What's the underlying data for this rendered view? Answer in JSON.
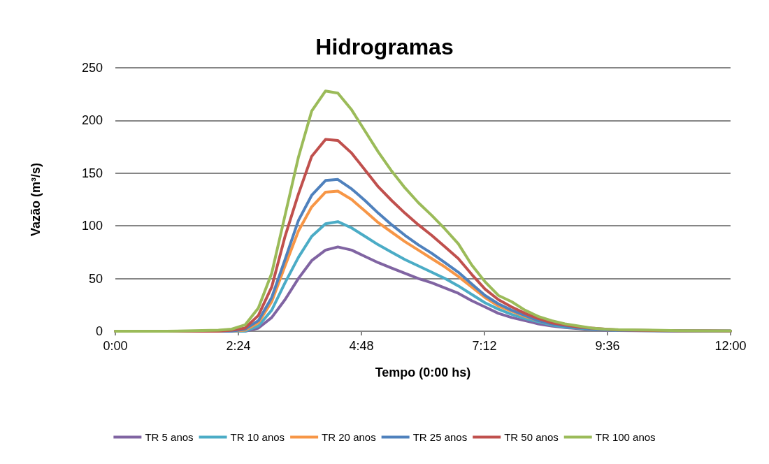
{
  "chart_data": {
    "type": "line",
    "title": "Hidrogramas",
    "xlabel": "Tempo (0:00 hs)",
    "ylabel": "Vazão (m³/s)",
    "x": [
      0,
      1,
      2.01,
      2.27,
      2.53,
      2.79,
      3.05,
      3.31,
      3.57,
      3.83,
      4.1,
      4.34,
      4.61,
      4.87,
      5.13,
      5.39,
      5.65,
      5.91,
      6.17,
      6.43,
      6.69,
      6.95,
      7.21,
      7.47,
      7.73,
      7.99,
      8.25,
      8.51,
      8.77,
      9.03,
      9.29,
      9.55,
      9.81,
      10.5,
      11,
      12
    ],
    "xlim": [
      0,
      12
    ],
    "xticks": [
      {
        "value": 0,
        "label": "0:00"
      },
      {
        "value": 2.4,
        "label": "2:24"
      },
      {
        "value": 4.8,
        "label": "4:48"
      },
      {
        "value": 7.2,
        "label": "7:12"
      },
      {
        "value": 9.6,
        "label": "9:36"
      },
      {
        "value": 12,
        "label": "12:00"
      }
    ],
    "ylim": [
      0,
      250
    ],
    "yticks": [
      0,
      50,
      100,
      150,
      200,
      250
    ],
    "grid": "y",
    "legend": "bottom",
    "marker": "none",
    "line_style": "solid",
    "series": [
      {
        "name": "TR 5 anos",
        "color": "#8064a2",
        "values": [
          0,
          0,
          0,
          0,
          0,
          3,
          13,
          30,
          50,
          67,
          77,
          80,
          77,
          71,
          65,
          60,
          55,
          50,
          46,
          41,
          36,
          29,
          23,
          17,
          13,
          10,
          7,
          5,
          3.5,
          2.5,
          1.5,
          1,
          0.6,
          0.4,
          0.2,
          0.1
        ]
      },
      {
        "name": "TR 10 anos",
        "color": "#4bacc6",
        "values": [
          null,
          null,
          0,
          0,
          0,
          5,
          20,
          46,
          70,
          90,
          102,
          104,
          98,
          90,
          82,
          75,
          68,
          62,
          56,
          50,
          43,
          35,
          27,
          21,
          16,
          12,
          9,
          6,
          4,
          3,
          2,
          1.3,
          0.8,
          0.5,
          0.3,
          0.1
        ]
      },
      {
        "name": "TR 20 anos",
        "color": "#f79646",
        "values": [
          null,
          null,
          0,
          0,
          1,
          8,
          28,
          62,
          95,
          118,
          132,
          133,
          125,
          114,
          103,
          94,
          85,
          77,
          69,
          61,
          52,
          42,
          32,
          24,
          19,
          14,
          10,
          7,
          null,
          null,
          null,
          null,
          null,
          null,
          null,
          null
        ]
      },
      {
        "name": "TR 25 anos",
        "color": "#4f81bd",
        "values": [
          0,
          0,
          0,
          0,
          2,
          10,
          32,
          68,
          105,
          129,
          143,
          144,
          135,
          124,
          112,
          101,
          91,
          82,
          74,
          65,
          56,
          45,
          34,
          26,
          20,
          15,
          10,
          7,
          5,
          3.5,
          2.5,
          1.5,
          1,
          0.6,
          0.3,
          0.2
        ]
      },
      {
        "name": "TR 50 anos",
        "color": "#c0504d",
        "values": [
          0,
          0,
          0,
          1,
          3,
          15,
          42,
          90,
          130,
          166,
          182,
          181,
          169,
          153,
          137,
          124,
          112,
          101,
          91,
          80,
          69,
          54,
          40,
          30,
          23,
          17,
          12,
          8,
          6,
          4,
          3,
          2,
          1.2,
          0.7,
          0.4,
          0.2
        ]
      },
      {
        "name": "TR 100 anos",
        "color": "#9bbb59",
        "values": [
          0,
          0,
          1,
          2,
          6,
          22,
          55,
          110,
          165,
          209,
          228,
          226,
          210,
          190,
          170,
          152,
          136,
          122,
          110,
          97,
          83,
          63,
          47,
          34,
          28,
          20,
          14,
          10,
          7,
          5,
          3,
          2,
          1.5,
          1,
          0.5,
          0.3
        ]
      }
    ]
  }
}
